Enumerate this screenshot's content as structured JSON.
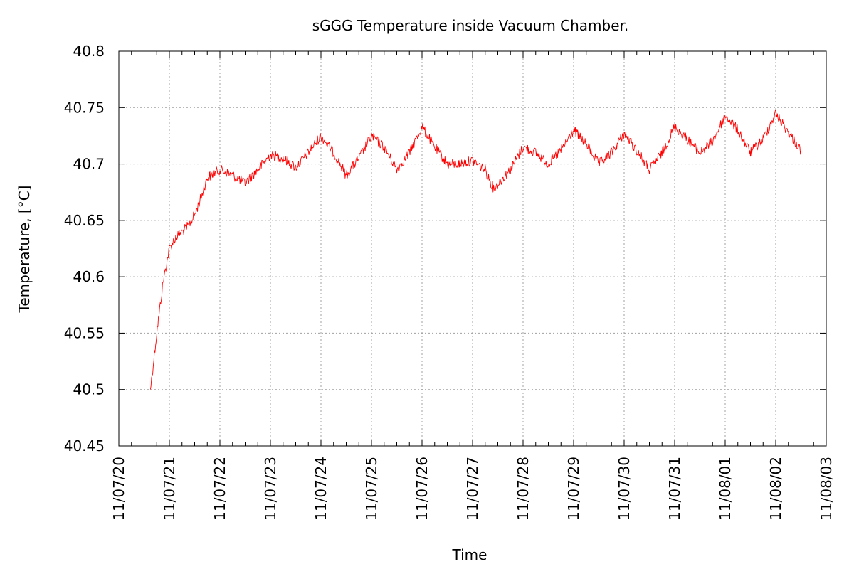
{
  "chart_data": {
    "type": "line",
    "title": "sGGG Temperature inside Vacuum Chamber.",
    "xlabel": "Time",
    "ylabel": "Temperature, [°C]",
    "ylim": [
      40.45,
      40.8
    ],
    "y_ticks": [
      "40.45",
      "40.5",
      "40.55",
      "40.6",
      "40.65",
      "40.7",
      "40.75",
      "40.8"
    ],
    "x_range": [
      "11/07/20",
      "11/08/03"
    ],
    "x_ticks": [
      "11/07/20",
      "11/07/21",
      "11/07/22",
      "11/07/23",
      "11/07/24",
      "11/07/25",
      "11/07/26",
      "11/07/27",
      "11/07/28",
      "11/07/29",
      "11/07/30",
      "11/07/31",
      "11/08/01",
      "11/08/02",
      "11/08/03"
    ],
    "grid": true,
    "series": [
      {
        "color": "#ff0000",
        "x": [
          "11/07/20 15:00",
          "11/07/20 18:00",
          "11/07/20 21:00",
          "11/07/21 00:00",
          "11/07/21 03:00",
          "11/07/21 06:00",
          "11/07/21 09:00",
          "11/07/21 12:00",
          "11/07/21 15:00",
          "11/07/21 18:00",
          "11/07/22 00:00",
          "11/07/22 06:00",
          "11/07/22 12:00",
          "11/07/22 18:00",
          "11/07/23 00:00",
          "11/07/23 06:00",
          "11/07/23 12:00",
          "11/07/23 18:00",
          "11/07/24 00:00",
          "11/07/24 06:00",
          "11/07/24 12:00",
          "11/07/24 18:00",
          "11/07/25 00:00",
          "11/07/25 06:00",
          "11/07/25 12:00",
          "11/07/25 18:00",
          "11/07/26 00:00",
          "11/07/26 06:00",
          "11/07/26 12:00",
          "11/07/26 18:00",
          "11/07/27 00:00",
          "11/07/27 06:00",
          "11/07/27 10:00",
          "11/07/27 18:00",
          "11/07/28 00:00",
          "11/07/28 06:00",
          "11/07/28 12:00",
          "11/07/28 18:00",
          "11/07/29 00:00",
          "11/07/29 06:00",
          "11/07/29 12:00",
          "11/07/29 18:00",
          "11/07/30 00:00",
          "11/07/30 06:00",
          "11/07/30 12:00",
          "11/07/30 18:00",
          "11/07/31 00:00",
          "11/07/31 06:00",
          "11/07/31 12:00",
          "11/07/31 18:00",
          "11/08/01 00:00",
          "11/08/01 06:00",
          "11/08/01 12:00",
          "11/08/01 18:00",
          "11/08/02 00:00",
          "11/08/02 06:00",
          "11/08/02 12:00"
        ],
        "y": [
          40.5,
          40.55,
          40.595,
          40.625,
          40.635,
          40.64,
          40.645,
          40.655,
          40.67,
          40.688,
          40.695,
          40.69,
          40.683,
          40.695,
          40.708,
          40.705,
          40.697,
          40.71,
          40.725,
          40.71,
          40.69,
          40.705,
          40.725,
          40.715,
          40.695,
          40.71,
          40.733,
          40.715,
          40.7,
          40.7,
          40.703,
          40.695,
          40.678,
          40.695,
          40.715,
          40.71,
          40.7,
          40.712,
          40.73,
          40.718,
          40.7,
          40.71,
          40.727,
          40.712,
          40.695,
          40.71,
          40.733,
          40.722,
          40.71,
          40.72,
          40.743,
          40.73,
          40.71,
          40.722,
          40.745,
          40.728,
          40.712
        ]
      }
    ]
  }
}
